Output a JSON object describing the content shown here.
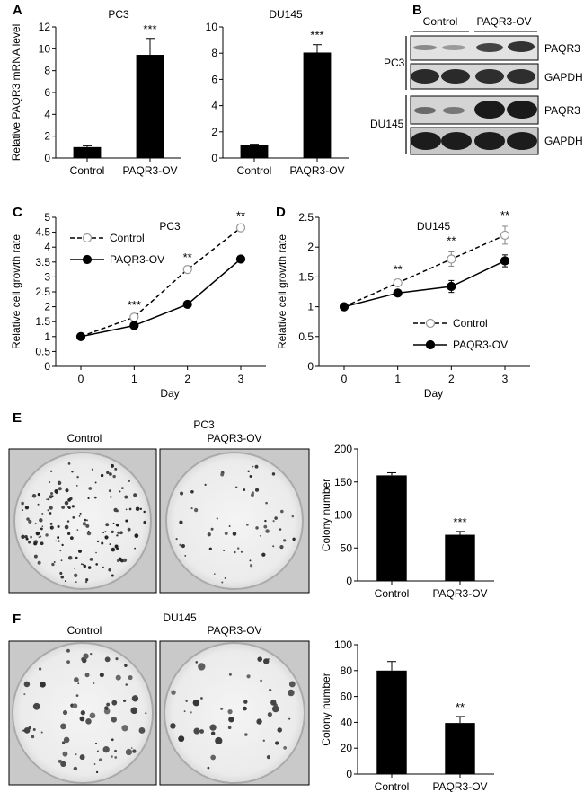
{
  "panels": {
    "A": "A",
    "B": "B",
    "C": "C",
    "D": "D",
    "E": "E",
    "F": "F"
  },
  "chart_data": [
    {
      "id": "A1",
      "type": "bar",
      "title": "PC3",
      "ylabel": "Relative PAQR3 mRNA level",
      "categories": [
        "Control",
        "PAQR3-OV"
      ],
      "values": [
        1.0,
        9.45
      ],
      "errors": [
        0.12,
        1.5
      ],
      "ylim": [
        0,
        12
      ],
      "yticks": [
        0,
        2,
        4,
        6,
        8,
        10,
        12
      ],
      "annotations": [
        "",
        "***"
      ]
    },
    {
      "id": "A2",
      "type": "bar",
      "title": "DU145",
      "ylabel": "",
      "categories": [
        "Control",
        "PAQR3-OV"
      ],
      "values": [
        1.0,
        8.05
      ],
      "errors": [
        0.05,
        0.6
      ],
      "ylim": [
        0,
        10
      ],
      "yticks": [
        0,
        2,
        4,
        6,
        8,
        10
      ],
      "annotations": [
        "",
        "***"
      ]
    },
    {
      "id": "C",
      "type": "line",
      "title": "PC3",
      "xlabel": "Day",
      "ylabel": "Relative cell growth rate",
      "x": [
        0,
        1,
        2,
        3
      ],
      "ylim": [
        0,
        5
      ],
      "yticks": [
        0,
        0.5,
        1,
        1.5,
        2,
        2.5,
        3,
        3.5,
        4,
        4.5,
        5
      ],
      "ytick_labels": [
        "0",
        "0.5",
        "1",
        "1.5",
        "2",
        "2.5",
        "3",
        "3.5",
        "4",
        "4.5",
        "5"
      ],
      "series": [
        {
          "name": "Control",
          "values": [
            1.0,
            1.65,
            3.25,
            4.65
          ],
          "errors": [
            0,
            0.03,
            0.04,
            0.04
          ],
          "style": "dashed-open"
        },
        {
          "name": "PAQR3-OV",
          "values": [
            1.0,
            1.37,
            2.08,
            3.6
          ],
          "errors": [
            0,
            0.02,
            0.03,
            0.03
          ],
          "style": "solid-filled"
        }
      ],
      "annotations": [
        "",
        "***",
        "**",
        "**"
      ],
      "legend": "top-left"
    },
    {
      "id": "D",
      "type": "line",
      "title": "DU145",
      "xlabel": "Day",
      "ylabel": "Relative cell growth rate",
      "x": [
        0,
        1,
        2,
        3
      ],
      "ylim": [
        0,
        2.5
      ],
      "yticks": [
        0,
        0.5,
        1,
        1.5,
        2,
        2.5
      ],
      "ytick_labels": [
        "0",
        "0.5",
        "1",
        "1.5",
        "2",
        "2.5"
      ],
      "series": [
        {
          "name": "Control",
          "values": [
            1.0,
            1.4,
            1.8,
            2.2
          ],
          "errors": [
            0,
            0.04,
            0.12,
            0.15
          ],
          "style": "dashed-open"
        },
        {
          "name": "PAQR3-OV",
          "values": [
            1.0,
            1.23,
            1.34,
            1.77
          ],
          "errors": [
            0,
            0.03,
            0.1,
            0.1
          ],
          "style": "solid-filled"
        }
      ],
      "annotations": [
        "",
        "**",
        "**",
        "**"
      ],
      "legend": "bottom-right"
    },
    {
      "id": "E",
      "type": "bar",
      "title": "",
      "ylabel": "Colony number",
      "categories": [
        "Control",
        "PAQR3-OV"
      ],
      "values": [
        160,
        70
      ],
      "errors": [
        4,
        5
      ],
      "ylim": [
        0,
        200
      ],
      "yticks": [
        0,
        50,
        100,
        150,
        200
      ],
      "annotations": [
        "",
        "***"
      ]
    },
    {
      "id": "F",
      "type": "bar",
      "title": "",
      "ylabel": "Colony number",
      "categories": [
        "Control",
        "PAQR3-OV"
      ],
      "values": [
        80,
        39.5
      ],
      "errors": [
        7,
        5
      ],
      "ylim": [
        0,
        100
      ],
      "yticks": [
        0,
        20,
        40,
        60,
        80,
        100
      ],
      "annotations": [
        "",
        "**"
      ]
    }
  ],
  "blot": {
    "header_control": "Control",
    "header_ov": "PAQR3-OV",
    "group1": "PC3",
    "group2": "DU145",
    "rows": [
      "PAQR3",
      "GAPDH",
      "PAQR3",
      "GAPDH"
    ]
  },
  "colony": {
    "E_title": "PC3",
    "E_control": "Control",
    "E_ov": "PAQR3-OV",
    "F_title": "DU145",
    "F_control": "Control",
    "F_ov": "PAQR3-OV"
  }
}
